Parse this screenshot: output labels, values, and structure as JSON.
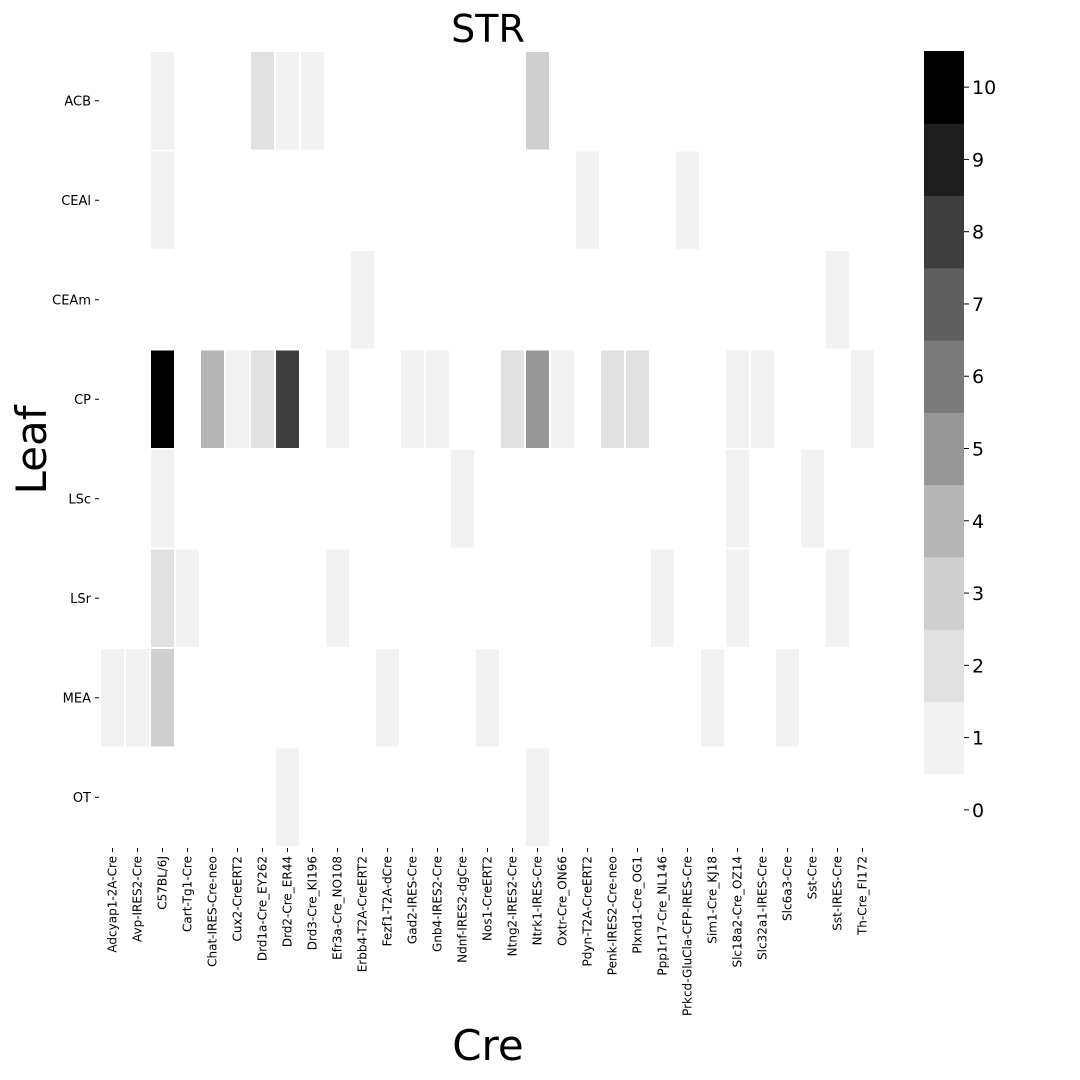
{
  "chart_data": {
    "type": "heatmap",
    "title": "STR",
    "xlabel": "Cre",
    "ylabel": "Leaf",
    "x_categories": [
      "Adcyap1-2A-Cre",
      "Avp-IRES2-Cre",
      "C57BL/6J",
      "Cart-Tg1-Cre",
      "Chat-IRES-Cre-neo",
      "Cux2-CreERT2",
      "Drd1a-Cre_EY262",
      "Drd2-Cre_ER44",
      "Drd3-Cre_KI196",
      "Efr3a-Cre_NO108",
      "Erbb4-T2A-CreERT2",
      "Fezf1-T2A-dCre",
      "Gad2-IRES-Cre",
      "Gnb4-IRES2-Cre",
      "Ndnf-IRES2-dgCre",
      "Nos1-CreERT2",
      "Ntng2-IRES2-Cre",
      "Ntrk1-IRES-Cre",
      "Oxtr-Cre_ON66",
      "Pdyn-T2A-CreERT2",
      "Penk-IRES2-Cre-neo",
      "Plxnd1-Cre_OG1",
      "Ppp1r17-Cre_NL146",
      "Prkcd-GluCla-CFP-IRES-Cre",
      "Sim1-Cre_KJ18",
      "Slc18a2-Cre_OZ14",
      "Slc32a1-IRES-Cre",
      "Slc6a3-Cre",
      "Sst-Cre",
      "Sst-IRES-Cre",
      "Th-Cre_FI172"
    ],
    "y_categories": [
      "ACB",
      "CEAl",
      "CEAm",
      "CP",
      "LSc",
      "LSr",
      "MEA",
      "OT"
    ],
    "values": [
      [
        0,
        0,
        1,
        0,
        0,
        0,
        2,
        1,
        1,
        0,
        0,
        0,
        0,
        0,
        0,
        0,
        0,
        3,
        0,
        0,
        0,
        0,
        0,
        0,
        0,
        0,
        0,
        0,
        0,
        0,
        0
      ],
      [
        0,
        0,
        1,
        0,
        0,
        0,
        0,
        0,
        0,
        0,
        0,
        0,
        0,
        0,
        0,
        0,
        0,
        0,
        0,
        1,
        0,
        0,
        0,
        1,
        0,
        0,
        0,
        0,
        0,
        0,
        0
      ],
      [
        0,
        0,
        0,
        0,
        0,
        0,
        0,
        0,
        0,
        0,
        1,
        0,
        0,
        0,
        0,
        0,
        0,
        0,
        0,
        0,
        0,
        0,
        0,
        0,
        0,
        0,
        0,
        0,
        0,
        1,
        0
      ],
      [
        0,
        0,
        10,
        0,
        4,
        1,
        2,
        8,
        0,
        1,
        0,
        0,
        1,
        1,
        0,
        0,
        2,
        5,
        1,
        0,
        2,
        2,
        0,
        0,
        0,
        1,
        1,
        0,
        0,
        0,
        1
      ],
      [
        0,
        0,
        1,
        0,
        0,
        0,
        0,
        0,
        0,
        0,
        0,
        0,
        0,
        0,
        1,
        0,
        0,
        0,
        0,
        0,
        0,
        0,
        0,
        0,
        0,
        1,
        0,
        0,
        1,
        0,
        0
      ],
      [
        0,
        0,
        2,
        1,
        0,
        0,
        0,
        0,
        0,
        1,
        0,
        0,
        0,
        0,
        0,
        0,
        0,
        0,
        0,
        0,
        0,
        0,
        1,
        0,
        0,
        1,
        0,
        0,
        0,
        1,
        0
      ],
      [
        1,
        1,
        3,
        0,
        0,
        0,
        0,
        0,
        0,
        0,
        0,
        1,
        0,
        0,
        0,
        1,
        0,
        0,
        0,
        0,
        0,
        0,
        0,
        0,
        1,
        0,
        0,
        1,
        0,
        0,
        0
      ],
      [
        0,
        0,
        0,
        0,
        0,
        0,
        0,
        1,
        0,
        0,
        0,
        0,
        0,
        0,
        0,
        0,
        0,
        1,
        0,
        0,
        0,
        0,
        0,
        0,
        0,
        0,
        0,
        0,
        0,
        0,
        0
      ]
    ],
    "colorbar": {
      "min": 0,
      "max": 10,
      "ticks": [
        "0",
        "1",
        "2",
        "3",
        "4",
        "5",
        "6",
        "7",
        "8",
        "9",
        "10"
      ],
      "colors": [
        "#ffffff",
        "#f2f2f2",
        "#e1e1e1",
        "#cfcfcf",
        "#b5b5b5",
        "#979797",
        "#7a7a7a",
        "#5f5f5f",
        "#3e3e3e",
        "#1e1e1e",
        "#000000"
      ]
    },
    "grid": false
  }
}
